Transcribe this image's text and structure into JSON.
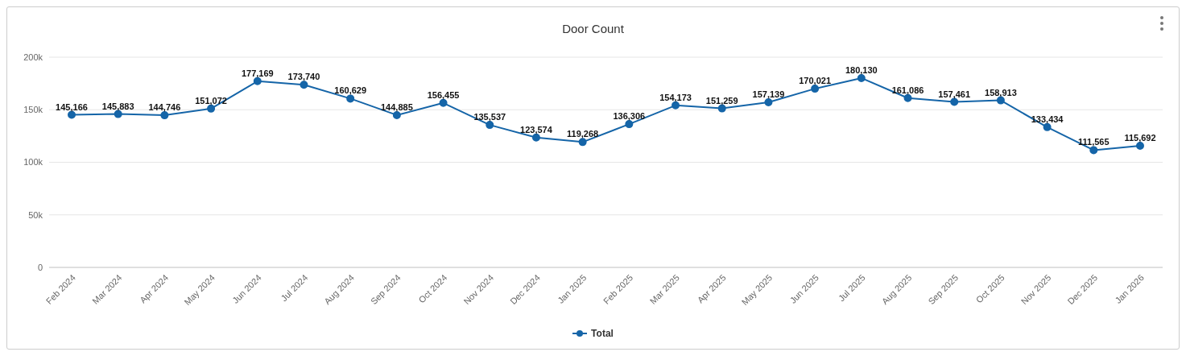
{
  "chart_data": {
    "type": "line",
    "title": "Door Count",
    "categories": [
      "Feb 2024",
      "Mar 2024",
      "Apr 2024",
      "May 2024",
      "Jun 2024",
      "Jul 2024",
      "Aug 2024",
      "Sep 2024",
      "Oct 2024",
      "Nov 2024",
      "Dec 2024",
      "Jan 2025",
      "Feb 2025",
      "Mar 2025",
      "Apr 2025",
      "May 2025",
      "Jun 2025",
      "Jul 2025",
      "Aug 2025",
      "Sep 2025",
      "Oct 2025",
      "Nov 2025",
      "Dec 2025",
      "Jan 2026"
    ],
    "series": [
      {
        "name": "Total",
        "color": "#1565a8",
        "values": [
          145166,
          145883,
          144746,
          151072,
          177169,
          173740,
          160629,
          144885,
          156455,
          135537,
          123574,
          119268,
          136306,
          154173,
          151259,
          157139,
          170021,
          180130,
          161086,
          157461,
          158913,
          133434,
          111565,
          115692
        ],
        "value_labels": [
          "145,166",
          "145,883",
          "144,746",
          "151,072",
          "177,169",
          "173,740",
          "160,629",
          "144,885",
          "156,455",
          "135,537",
          "123,574",
          "119,268",
          "136,306",
          "154,173",
          "151,259",
          "157,139",
          "170,021",
          "180,130",
          "161,086",
          "157,461",
          "158,913",
          "133,434",
          "111,565",
          "115,692"
        ]
      }
    ],
    "ylim": [
      0,
      200000
    ],
    "yticks": [
      0,
      {
        "value": 50000,
        "label": "50k"
      },
      {
        "value": 100000,
        "label": "100k"
      },
      {
        "value": 150000,
        "label": "150k"
      },
      {
        "value": 200000,
        "label": "200k"
      }
    ],
    "grid": "y",
    "legend": "bottom",
    "marker": "circle",
    "line_style": "solid"
  }
}
